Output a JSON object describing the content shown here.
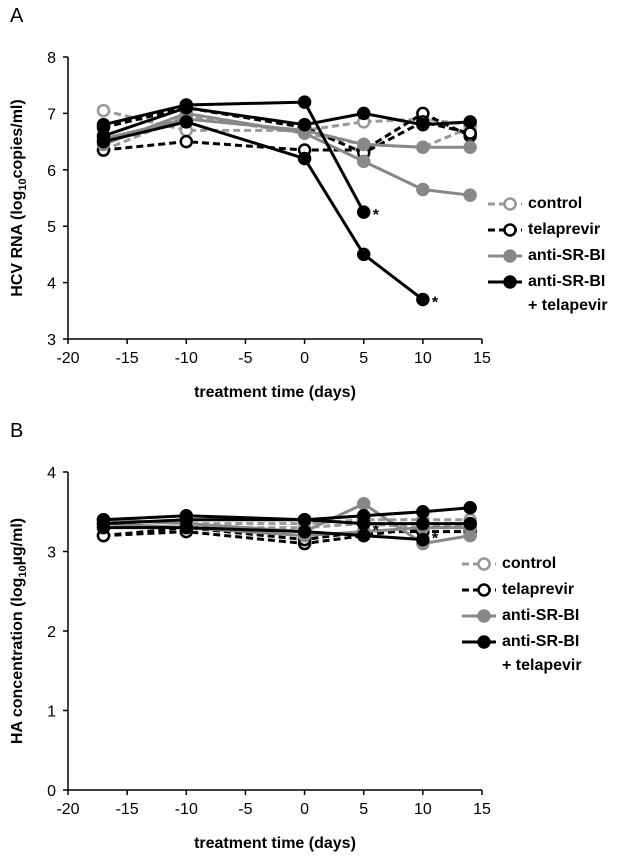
{
  "chart_data": [
    {
      "type": "line",
      "panel": "A",
      "ylabel": [
        "HCV RNA (log",
        "10",
        "copies/ml)"
      ],
      "xlabel": "treatment time (days)",
      "x": [
        -17,
        -10,
        0,
        5,
        10,
        14
      ],
      "xlim": [
        -20,
        15
      ],
      "xticks": [
        -20,
        -15,
        -10,
        -5,
        0,
        5,
        10,
        15
      ],
      "ylim": [
        3,
        8
      ],
      "yticks": [
        3,
        4,
        5,
        6,
        7,
        8
      ],
      "series": [
        {
          "name": "control",
          "color": "#999999",
          "dashed": true,
          "filled": false,
          "values": [
            [
              7.05,
              6.7,
              6.7,
              6.85,
              6.9,
              6.8
            ],
            [
              6.35,
              6.95,
              6.65,
              6.45,
              6.4,
              6.75
            ]
          ]
        },
        {
          "name": "telaprevir",
          "color": "#000000",
          "dashed": true,
          "filled": false,
          "values": [
            [
              6.35,
              6.5,
              6.35,
              6.35,
              7.0,
              6.6
            ],
            [
              6.75,
              7.1,
              6.75,
              6.3,
              6.85,
              6.65
            ]
          ]
        },
        {
          "name": "anti-SR-BI",
          "color": "#888888",
          "dashed": false,
          "filled": true,
          "values": [
            [
              6.45,
              7.0,
              6.65,
              6.15,
              5.65,
              5.55
            ],
            [
              6.55,
              6.9,
              6.7,
              6.45,
              6.4,
              6.4
            ]
          ]
        },
        {
          "name": "anti-SR-BI\n+ telapevir",
          "color": "#000000",
          "dashed": false,
          "filled": true,
          "values": [
            [
              6.8,
              7.15,
              7.2,
              5.25,
              null,
              null
            ],
            [
              6.5,
              6.85,
              6.2,
              4.5,
              3.7,
              null
            ],
            [
              6.6,
              7.1,
              6.8,
              7.0,
              6.8,
              6.85
            ]
          ]
        }
      ],
      "annotations": [
        {
          "text": "*",
          "x": 5,
          "y": 5.25
        },
        {
          "text": "*",
          "x": 10,
          "y": 3.7
        }
      ]
    },
    {
      "type": "line",
      "panel": "B",
      "ylabel": [
        "HA concentration (log",
        "10",
        "µg/ml)"
      ],
      "xlabel": "treatment time (days)",
      "x": [
        -17,
        -10,
        0,
        5,
        10,
        14
      ],
      "xlim": [
        -20,
        15
      ],
      "xticks": [
        -20,
        -15,
        -10,
        -5,
        0,
        5,
        10,
        15
      ],
      "ylim": [
        0,
        4
      ],
      "yticks": [
        0,
        1,
        2,
        3,
        4
      ],
      "series": [
        {
          "name": "control",
          "color": "#999999",
          "dashed": true,
          "filled": false,
          "values": [
            [
              3.4,
              3.35,
              3.35,
              3.4,
              3.4,
              3.4
            ],
            [
              3.35,
              3.3,
              3.3,
              3.35,
              3.3,
              3.35
            ]
          ]
        },
        {
          "name": "telaprevir",
          "color": "#000000",
          "dashed": true,
          "filled": false,
          "values": [
            [
              3.2,
              3.25,
              3.1,
              3.2,
              3.3,
              3.3
            ],
            [
              3.2,
              3.3,
              3.15,
              3.25,
              3.25,
              3.25
            ]
          ]
        },
        {
          "name": "anti-SR-BI",
          "color": "#888888",
          "dashed": false,
          "filled": true,
          "values": [
            [
              3.4,
              3.35,
              3.25,
              3.6,
              3.1,
              3.2
            ],
            [
              3.35,
              3.3,
              3.2,
              3.25,
              3.3,
              3.3
            ]
          ]
        },
        {
          "name": "anti-SR-BI\n+ telapevir",
          "color": "#000000",
          "dashed": false,
          "filled": true,
          "values": [
            [
              3.35,
              3.4,
              3.4,
              3.45,
              3.5,
              3.55
            ],
            [
              3.3,
              3.3,
              3.25,
              3.2,
              3.15,
              null
            ],
            [
              3.4,
              3.45,
              3.4,
              3.35,
              3.35,
              3.35
            ]
          ]
        }
      ],
      "annotations": [
        {
          "text": "*",
          "x": 5,
          "y": 3.3
        },
        {
          "text": "*",
          "x": 10,
          "y": 3.2
        }
      ]
    }
  ]
}
